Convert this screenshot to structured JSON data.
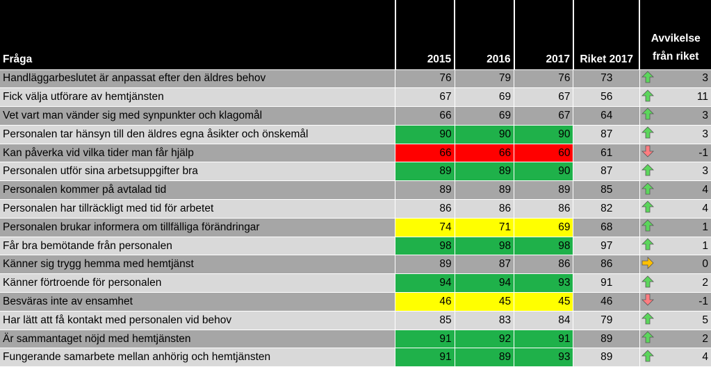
{
  "headers": {
    "question": "Fråga",
    "y2015": "2015",
    "y2016": "2016",
    "y2017": "2017",
    "riket": "Riket 2017",
    "deviation_line1": "Avvikelse",
    "deviation_line2": "från riket"
  },
  "colors": {
    "green": "#1fb14a",
    "red": "#ff0000",
    "yellow": "#ffff00",
    "arrow_up": "#5cd65c",
    "arrow_down": "#ff7c80",
    "arrow_right": "#ffc000"
  },
  "rows": [
    {
      "q": "Handläggarbeslutet är anpassat efter den äldres behov",
      "y2015": "76",
      "y2016": "79",
      "y2017": "76",
      "riket": "73",
      "dir": "up",
      "dev": "3",
      "color": ""
    },
    {
      "q": "Fick välja utförare av hemtjänsten",
      "y2015": "67",
      "y2016": "69",
      "y2017": "67",
      "riket": "56",
      "dir": "up",
      "dev": "11",
      "color": ""
    },
    {
      "q": "Vet vart man vänder sig med synpunkter och klagomål",
      "y2015": "66",
      "y2016": "69",
      "y2017": "67",
      "riket": "64",
      "dir": "up",
      "dev": "3",
      "color": ""
    },
    {
      "q": "Personalen tar hänsyn till den äldres egna åsikter och önskemål",
      "y2015": "90",
      "y2016": "90",
      "y2017": "90",
      "riket": "87",
      "dir": "up",
      "dev": "3",
      "color": "green"
    },
    {
      "q": "Kan påverka vid vilka tider man får hjälp",
      "y2015": "66",
      "y2016": "66",
      "y2017": "60",
      "riket": "61",
      "dir": "down",
      "dev": "-1",
      "color": "red"
    },
    {
      "q": "Personalen utför sina arbetsuppgifter bra",
      "y2015": "89",
      "y2016": "89",
      "y2017": "90",
      "riket": "87",
      "dir": "up",
      "dev": "3",
      "color": "green"
    },
    {
      "q": "Personalen kommer på avtalad tid",
      "y2015": "89",
      "y2016": "89",
      "y2017": "89",
      "riket": "85",
      "dir": "up",
      "dev": "4",
      "color": ""
    },
    {
      "q": "Personalen har tillräckligt med tid för arbetet",
      "y2015": "86",
      "y2016": "86",
      "y2017": "86",
      "riket": "82",
      "dir": "up",
      "dev": "4",
      "color": ""
    },
    {
      "q": "Personalen brukar informera om tillfälliga förändringar",
      "y2015": "74",
      "y2016": "71",
      "y2017": "69",
      "riket": "68",
      "dir": "up",
      "dev": "1",
      "color": "yellow"
    },
    {
      "q": "Får bra bemötande från personalen",
      "y2015": "98",
      "y2016": "98",
      "y2017": "98",
      "riket": "97",
      "dir": "up",
      "dev": "1",
      "color": "green"
    },
    {
      "q": "Känner sig trygg hemma med hemtjänst",
      "y2015": "89",
      "y2016": "87",
      "y2017": "86",
      "riket": "86",
      "dir": "right",
      "dev": "0",
      "color": ""
    },
    {
      "q": "Känner förtroende för personalen",
      "y2015": "94",
      "y2016": "94",
      "y2017": "93",
      "riket": "91",
      "dir": "up",
      "dev": "2",
      "color": "green"
    },
    {
      "q": "Besväras inte av ensamhet",
      "y2015": "46",
      "y2016": "45",
      "y2017": "45",
      "riket": "46",
      "dir": "down",
      "dev": "-1",
      "color": "yellow"
    },
    {
      "q": "Har lätt att få kontakt med personalen vid behov",
      "y2015": "85",
      "y2016": "83",
      "y2017": "84",
      "riket": "79",
      "dir": "up",
      "dev": "5",
      "color": ""
    },
    {
      "q": "Är sammantaget nöjd med hemtjänsten",
      "y2015": "91",
      "y2016": "92",
      "y2017": "91",
      "riket": "89",
      "dir": "up",
      "dev": "2",
      "color": "green"
    },
    {
      "q": "Fungerande samarbete mellan anhörig och hemtjänsten",
      "y2015": "91",
      "y2016": "89",
      "y2017": "93",
      "riket": "89",
      "dir": "up",
      "dev": "4",
      "color": "green"
    }
  ]
}
